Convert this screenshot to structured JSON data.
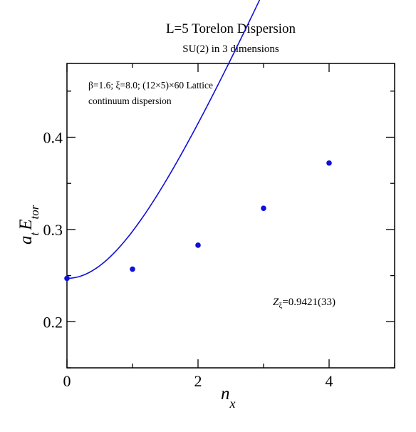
{
  "chart_data": {
    "type": "scatter",
    "title": "L=5 Torelon Dispersion",
    "subtitle": "SU(2) in 3 dimensions",
    "xlabel": {
      "main": "n",
      "sub": "x"
    },
    "ylabel": {
      "a": "a",
      "a_sub": "t",
      "E": "E",
      "E_sub": "tor"
    },
    "xlim": [
      0,
      5
    ],
    "ylim": [
      0.15,
      0.48
    ],
    "x_ticks": [
      {
        "value": 0,
        "label": "0"
      },
      {
        "value": 2,
        "label": "2"
      },
      {
        "value": 4,
        "label": "4"
      }
    ],
    "x_minor_ticks": [
      1,
      3,
      5
    ],
    "y_ticks": [
      {
        "value": 0.2,
        "label": "0.2"
      },
      {
        "value": 0.3,
        "label": "0.3"
      },
      {
        "value": 0.4,
        "label": "0.4"
      }
    ],
    "y_minor_ticks": [
      0.15,
      0.25,
      0.35,
      0.45
    ],
    "grid": false,
    "series": [
      {
        "values": [
          {
            "x": 0,
            "y": 0.247
          },
          {
            "x": 1,
            "y": 0.257
          },
          {
            "x": 2,
            "y": 0.283
          },
          {
            "x": 3,
            "y": 0.323
          },
          {
            "x": 4,
            "y": 0.372
          }
        ],
        "color": "#1010d8"
      }
    ],
    "fit_curve": {
      "E0": 0.247,
      "Z_xi": 0.9421,
      "xi": 8.0,
      "L": 5,
      "color": "#1010d8"
    },
    "annotations": {
      "params_line": "β=1.6;  ξ=8.0; (12×5)×60 Lattice",
      "curve_label": "continuum dispersion",
      "z_symbol": "Z",
      "z_sub": "ξ",
      "z_value": "=0.9421(33)"
    }
  }
}
